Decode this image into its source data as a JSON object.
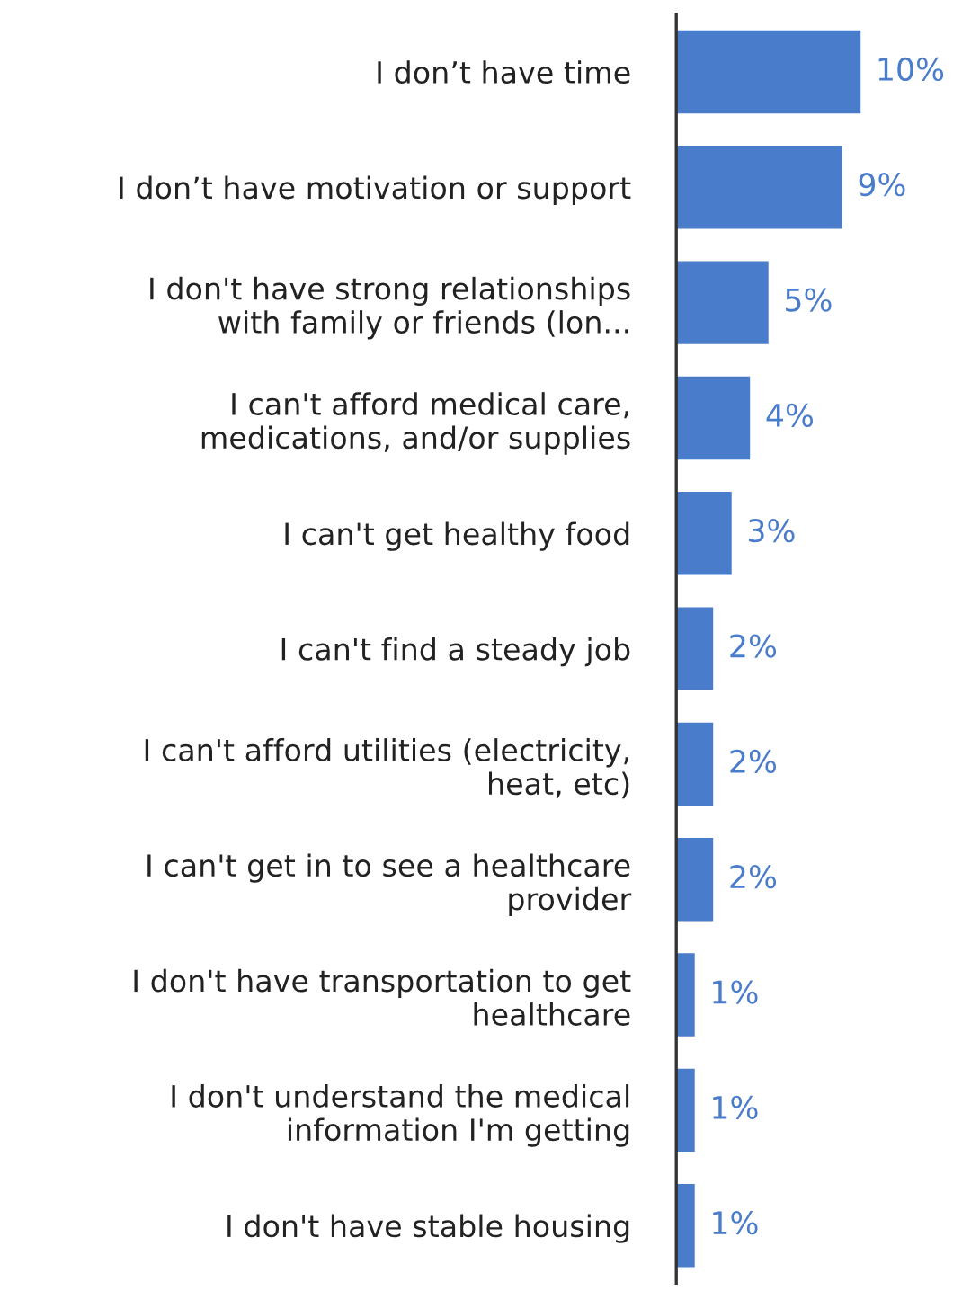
{
  "chart_data": {
    "type": "bar",
    "orientation": "horizontal",
    "categories": [
      "I don’t have time",
      "I don’t have motivation or support",
      "I don't have strong relationships\nwith family or friends (lon...",
      "I can't afford medical care,\nmedications, and/or supplies",
      "I can't get healthy food",
      "I can't find a steady job",
      "I can't afford utilities (electricity,\nheat, etc)",
      "I can't get in to see a healthcare\nprovider",
      "I don't have transportation to get\nhealthcare",
      "I don't understand the medical\ninformation I'm getting",
      "I don't have stable housing"
    ],
    "values": [
      10,
      9,
      5,
      4,
      3,
      2,
      2,
      2,
      1,
      1,
      1
    ],
    "value_labels": [
      "10%",
      "9%",
      "5%",
      "4%",
      "3%",
      "2%",
      "2%",
      "2%",
      "1%",
      "1%",
      "1%"
    ],
    "color": "#4a7ccc",
    "grid": false,
    "legend": false
  }
}
